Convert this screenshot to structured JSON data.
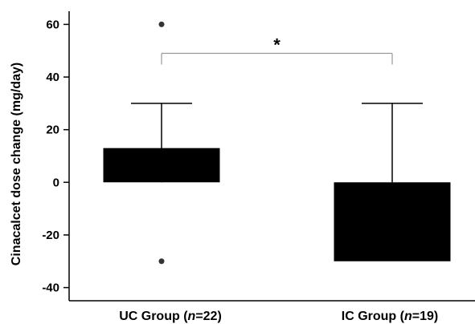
{
  "chart_data": {
    "type": "bar",
    "ylabel": "Cinacalcet dose change (mg/day)",
    "ylim": [
      -45,
      65
    ],
    "yticks": [
      60,
      40,
      20,
      0,
      -20,
      -40
    ],
    "yticks_labels": [
      "60",
      "40",
      "20",
      "0",
      "-20",
      "-40"
    ],
    "grid": false,
    "categories": [
      {
        "label_prefix": "UC Group (",
        "label_italic": "n",
        "label_suffix": "=22)"
      },
      {
        "label_prefix": "IC Group (",
        "label_italic": "n",
        "label_suffix": "=19)"
      }
    ],
    "values": [
      13,
      -30
    ],
    "error_upper": [
      30,
      30
    ],
    "outliers": [
      [
        60,
        -30
      ],
      []
    ],
    "significance": {
      "between": [
        0,
        1
      ],
      "label": "*",
      "y": 49
    },
    "colors": {
      "bar": "#000000",
      "axis": "#000000",
      "bracket": "#999999"
    }
  }
}
